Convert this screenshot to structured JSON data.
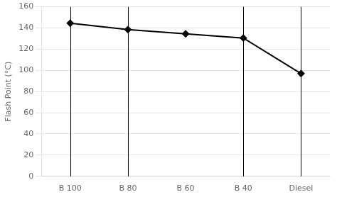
{
  "chart_data": {
    "type": "line",
    "categories": [
      "B 100",
      "B 80",
      "B 60",
      "B 40",
      "Diesel"
    ],
    "values": [
      144.5,
      138.5,
      134.5,
      130.5,
      97.0
    ],
    "ylabel": "Flash Point (°C)",
    "ylim": [
      0,
      160
    ],
    "yticks": [
      0,
      20,
      40,
      60,
      80,
      100,
      120,
      140,
      160
    ],
    "color": "#000000",
    "marker": "diamond",
    "grid": true,
    "vlines": [
      "B 100",
      "B 80",
      "B 40",
      "Diesel"
    ]
  }
}
